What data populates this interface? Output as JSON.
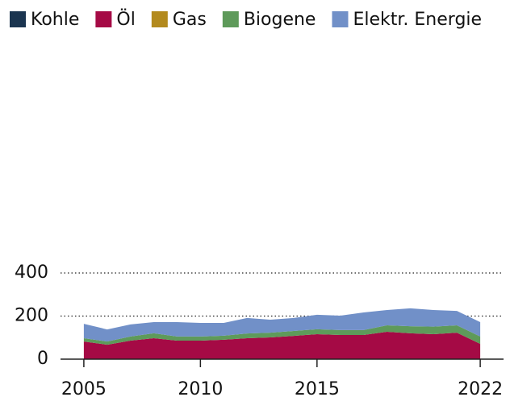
{
  "chart_data": {
    "type": "stacked_area",
    "x": [
      2005,
      2006,
      2007,
      2008,
      2009,
      2010,
      2011,
      2012,
      2013,
      2014,
      2015,
      2016,
      2017,
      2018,
      2019,
      2020,
      2021,
      2022
    ],
    "series": [
      {
        "name": "Kohle",
        "color": "#1b3550",
        "values": [
          0,
          0,
          0,
          0,
          0,
          0,
          0,
          0,
          0,
          0,
          0,
          0,
          0,
          0,
          0,
          0,
          0,
          0
        ]
      },
      {
        "name": "Öl",
        "color": "#a50a45",
        "values": [
          82,
          67,
          86,
          97,
          86,
          86,
          90,
          97,
          101,
          108,
          116,
          112,
          112,
          127,
          120,
          116,
          123,
          71
        ]
      },
      {
        "name": "Gas",
        "color": "#b38a1e",
        "values": [
          0,
          0,
          0,
          0,
          0,
          0,
          0,
          0,
          0,
          0,
          0,
          0,
          0,
          0,
          0,
          0,
          0,
          0
        ]
      },
      {
        "name": "Biogene",
        "color": "#5e9a5a",
        "values": [
          15,
          15,
          19,
          23,
          19,
          19,
          19,
          22,
          22,
          23,
          23,
          23,
          23,
          30,
          33,
          35,
          34,
          34
        ]
      },
      {
        "name": "Elektr. Energie",
        "color": "#7190c8",
        "values": [
          67,
          56,
          56,
          52,
          67,
          63,
          59,
          72,
          60,
          60,
          67,
          67,
          82,
          71,
          83,
          77,
          67,
          67
        ]
      }
    ],
    "xlim": [
      2004,
      2023
    ],
    "xticks": [
      2005,
      2010,
      2015,
      2022
    ],
    "ylim": [
      0,
      400
    ],
    "yticks": [
      0,
      200,
      400
    ],
    "grid": true,
    "legend": "top"
  }
}
